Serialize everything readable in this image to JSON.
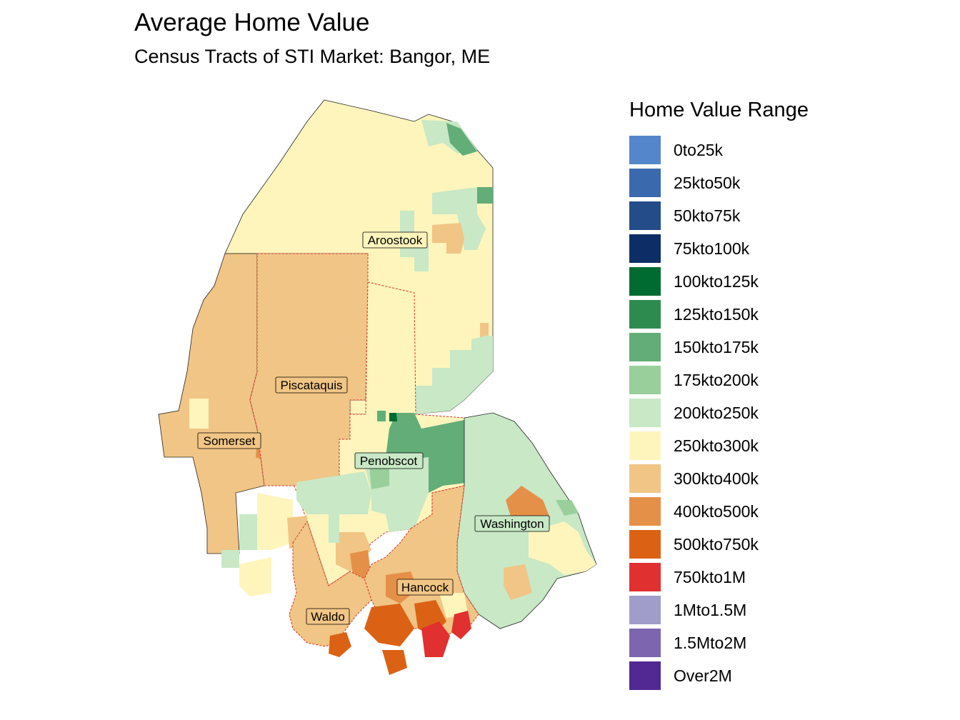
{
  "title": "Average Home Value",
  "subtitle": "Census Tracts of STI Market: Bangor, ME",
  "legend": {
    "title": "Home Value Range",
    "items": [
      {
        "label": "0to25k",
        "color": "#5486CC"
      },
      {
        "label": "25kto50k",
        "color": "#3A6AAD"
      },
      {
        "label": "50kto75k",
        "color": "#234C88"
      },
      {
        "label": "75kto100k",
        "color": "#0C2D66"
      },
      {
        "label": "100kto125k",
        "color": "#006B30"
      },
      {
        "label": "125kto150k",
        "color": "#2E8B4F"
      },
      {
        "label": "150kto175k",
        "color": "#62AD78"
      },
      {
        "label": "175kto200k",
        "color": "#99CF9A"
      },
      {
        "label": "200kto250k",
        "color": "#C8E8C6"
      },
      {
        "label": "250kto300k",
        "color": "#FEF5BC"
      },
      {
        "label": "300kto400k",
        "color": "#F1C585"
      },
      {
        "label": "400kto500k",
        "color": "#E59048"
      },
      {
        "label": "500kto750k",
        "color": "#DB6215"
      },
      {
        "label": "750kto1M",
        "color": "#E03030"
      },
      {
        "label": "1Mto1.5M",
        "color": "#A09DCB"
      },
      {
        "label": "1.5Mto2M",
        "color": "#7D65B0"
      },
      {
        "label": "Over2M",
        "color": "#522993"
      }
    ]
  },
  "counties": [
    {
      "name": "Aroostook"
    },
    {
      "name": "Piscataquis"
    },
    {
      "name": "Somerset"
    },
    {
      "name": "Penobscot"
    },
    {
      "name": "Washington"
    },
    {
      "name": "Hancock"
    },
    {
      "name": "Waldo"
    }
  ]
}
